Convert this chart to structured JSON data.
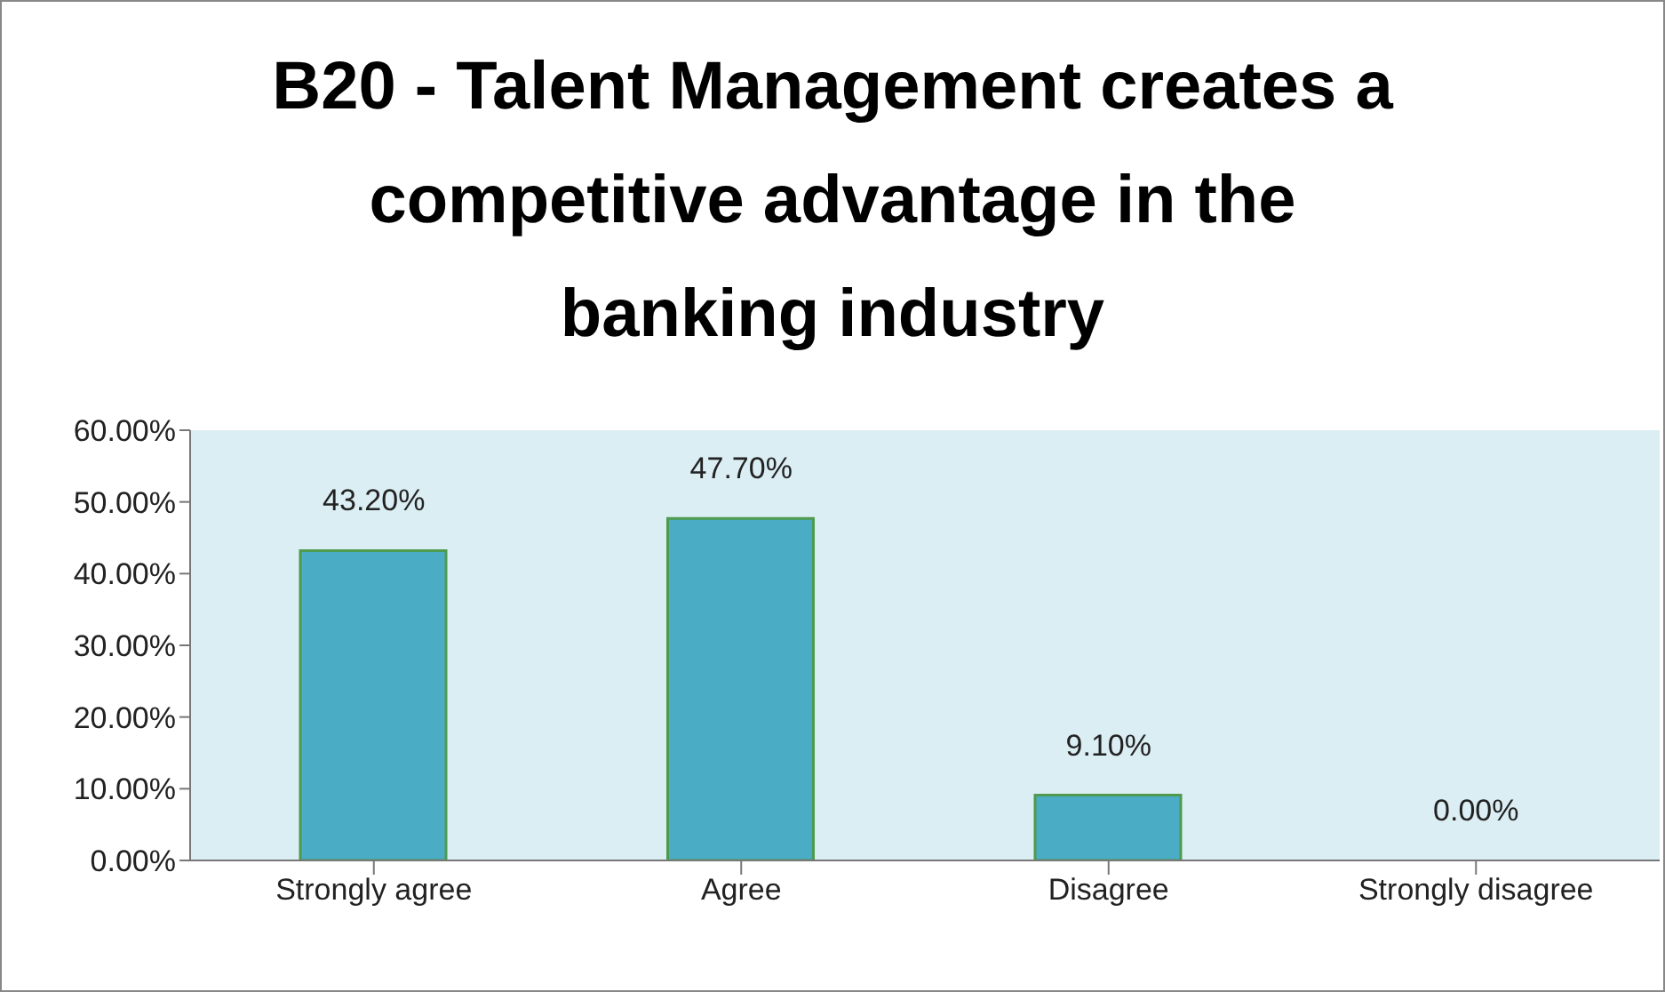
{
  "chart_data": {
    "type": "bar",
    "title": "B20 - Talent Management creates a competitive advantage in the banking industry",
    "categories": [
      "Strongly agree",
      "Agree",
      "Disagree",
      "Strongly disagree"
    ],
    "values": [
      43.2,
      47.7,
      9.1,
      0
    ],
    "color": "#4bacc6",
    "value_labels": [
      "43.20%",
      "47.70%",
      "9.10%",
      "0.00%"
    ],
    "ylim": [
      0,
      60
    ],
    "yticks": [
      {
        "value": 0,
        "label": "0.00%"
      },
      {
        "value": 10,
        "label": "10.00%"
      },
      {
        "value": 20,
        "label": "20.00%"
      },
      {
        "value": 30,
        "label": "30.00%"
      },
      {
        "value": 40,
        "label": "40.00%"
      },
      {
        "value": 50,
        "label": "50.00%"
      },
      {
        "value": 60,
        "label": "60.00%"
      }
    ]
  }
}
